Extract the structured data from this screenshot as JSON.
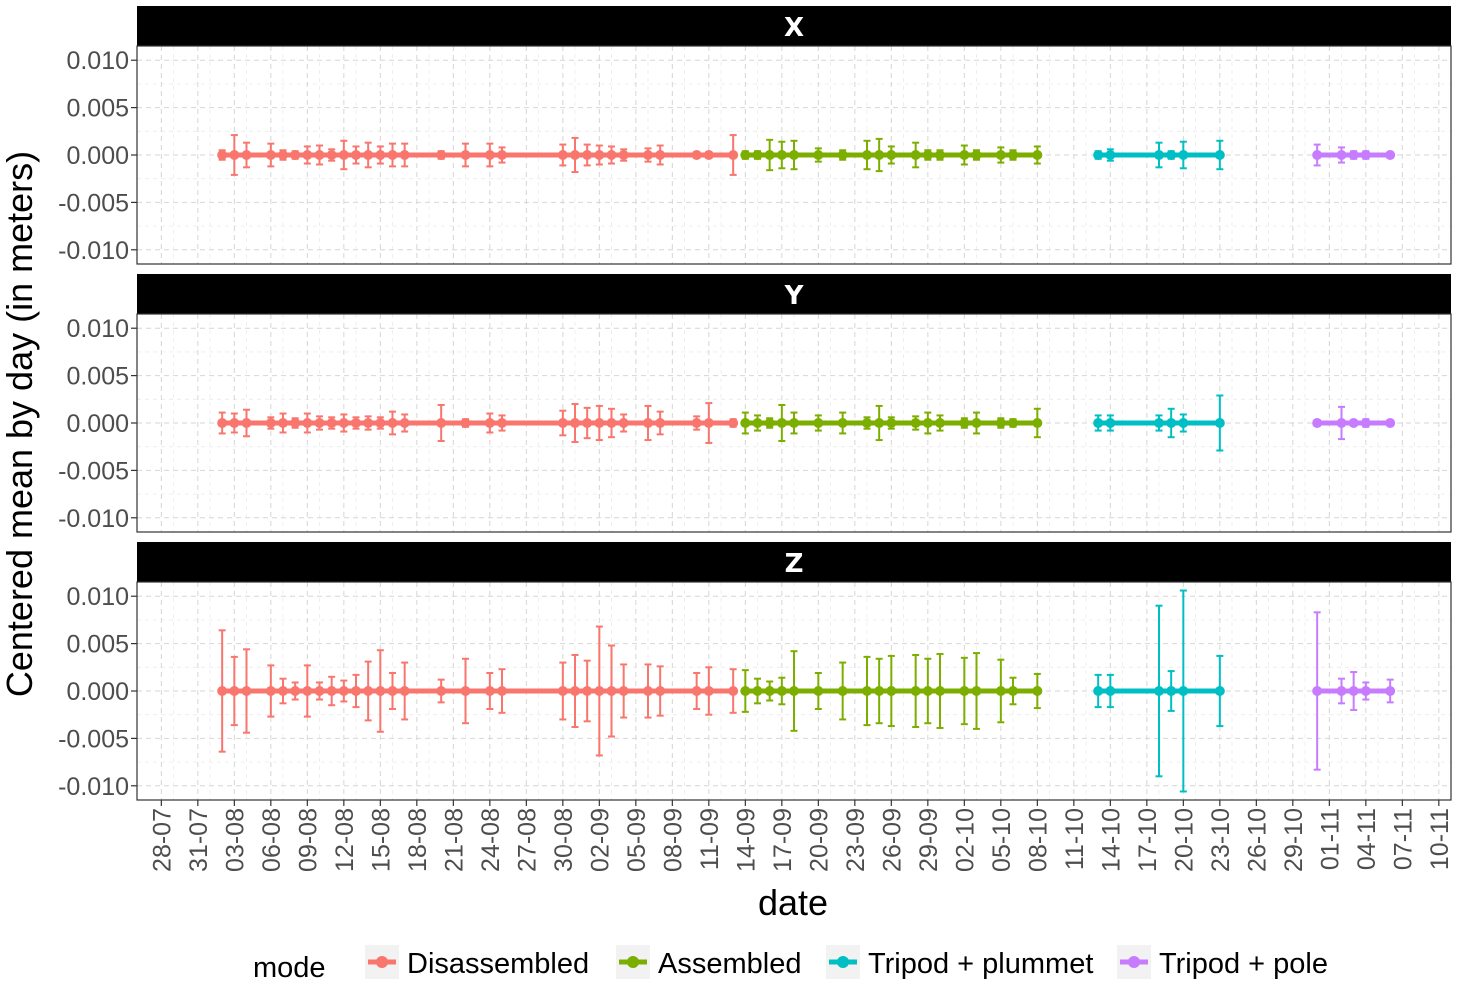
{
  "chart_data": {
    "type": "line",
    "title": "",
    "xlabel": "date",
    "ylabel": "Centered mean by day (in meters)",
    "facets": [
      "X",
      "Y",
      "Z"
    ],
    "ylim": [
      -0.0115,
      0.0115
    ],
    "y_ticks": [
      -0.01,
      -0.005,
      0,
      0.005,
      0.01
    ],
    "y_tick_labels": [
      "-0.010",
      "-0.005",
      "0.000",
      "0.005",
      "0.010"
    ],
    "x_range": [
      "2022-07-26",
      "2022-11-11"
    ],
    "x_ticks": [
      "2022-07-28",
      "2022-07-31",
      "2022-08-03",
      "2022-08-06",
      "2022-08-09",
      "2022-08-12",
      "2022-08-15",
      "2022-08-18",
      "2022-08-21",
      "2022-08-24",
      "2022-08-27",
      "2022-08-30",
      "2022-09-02",
      "2022-09-05",
      "2022-09-08",
      "2022-09-11",
      "2022-09-14",
      "2022-09-17",
      "2022-09-20",
      "2022-09-23",
      "2022-09-26",
      "2022-09-29",
      "2022-10-02",
      "2022-10-05",
      "2022-10-08",
      "2022-10-11",
      "2022-10-14",
      "2022-10-17",
      "2022-10-20",
      "2022-10-23",
      "2022-10-26",
      "2022-10-29",
      "2022-11-01",
      "2022-11-04",
      "2022-11-07",
      "2022-11-10"
    ],
    "x_tick_labels": [
      "28-07",
      "31-07",
      "03-08",
      "06-08",
      "09-08",
      "12-08",
      "15-08",
      "18-08",
      "21-08",
      "24-08",
      "27-08",
      "30-08",
      "02-09",
      "05-09",
      "08-09",
      "11-09",
      "14-09",
      "17-09",
      "20-09",
      "23-09",
      "26-09",
      "29-09",
      "02-10",
      "05-10",
      "08-10",
      "11-10",
      "14-10",
      "17-10",
      "20-10",
      "23-10",
      "26-10",
      "29-10",
      "01-11",
      "04-11",
      "07-11",
      "10-11"
    ],
    "grid": true,
    "legend": {
      "title": "mode",
      "position": "bottom"
    },
    "series": [
      {
        "name": "Disassembled",
        "color": "#F8766D",
        "dates": [
          "2022-08-02",
          "2022-08-03",
          "2022-08-04",
          "2022-08-06",
          "2022-08-07",
          "2022-08-08",
          "2022-08-09",
          "2022-08-10",
          "2022-08-11",
          "2022-08-12",
          "2022-08-13",
          "2022-08-14",
          "2022-08-15",
          "2022-08-16",
          "2022-08-17",
          "2022-08-20",
          "2022-08-22",
          "2022-08-24",
          "2022-08-25",
          "2022-08-30",
          "2022-08-31",
          "2022-09-01",
          "2022-09-02",
          "2022-09-03",
          "2022-09-04",
          "2022-09-06",
          "2022-09-07",
          "2022-09-10",
          "2022-09-11",
          "2022-09-13"
        ],
        "values": [
          0,
          0,
          0,
          0,
          0,
          0,
          0,
          0,
          0,
          0,
          0,
          0,
          0,
          0,
          0,
          0,
          0,
          0,
          0,
          0,
          0,
          0,
          0,
          0,
          0,
          0,
          0,
          0,
          0,
          0
        ],
        "err_X": [
          0.0005,
          0.0021,
          0.0013,
          0.0012,
          0.0005,
          0.0004,
          0.0009,
          0.001,
          0.0006,
          0.0015,
          0.0009,
          0.0013,
          0.0009,
          0.0012,
          0.0012,
          0.0004,
          0.0012,
          0.0012,
          0.0008,
          0.0011,
          0.0018,
          0.0011,
          0.001,
          0.0009,
          0.0006,
          0.0007,
          0.001,
          0.0003,
          0.0003,
          0.0021
        ],
        "err_Y": [
          0.0011,
          0.001,
          0.0014,
          0.0006,
          0.001,
          0.0005,
          0.001,
          0.0007,
          0.0006,
          0.0009,
          0.0006,
          0.0007,
          0.0006,
          0.0012,
          0.0009,
          0.0019,
          0.0004,
          0.001,
          0.0008,
          0.0013,
          0.002,
          0.0016,
          0.0018,
          0.0015,
          0.0009,
          0.0018,
          0.0012,
          0.0007,
          0.0021,
          0.0004
        ],
        "err_Z": [
          0.0064,
          0.0036,
          0.0044,
          0.0027,
          0.0013,
          0.0009,
          0.0027,
          0.0009,
          0.0015,
          0.0011,
          0.0017,
          0.0031,
          0.0043,
          0.0019,
          0.003,
          0.0012,
          0.0034,
          0.0019,
          0.0023,
          0.003,
          0.0038,
          0.0032,
          0.0068,
          0.0048,
          0.0028,
          0.0028,
          0.0026,
          0.0019,
          0.0025,
          0.0023
        ]
      },
      {
        "name": "Assembled",
        "color": "#7CAE00",
        "dates": [
          "2022-09-14",
          "2022-09-15",
          "2022-09-16",
          "2022-09-17",
          "2022-09-18",
          "2022-09-20",
          "2022-09-22",
          "2022-09-24",
          "2022-09-25",
          "2022-09-26",
          "2022-09-28",
          "2022-09-29",
          "2022-09-30",
          "2022-10-02",
          "2022-10-03",
          "2022-10-05",
          "2022-10-06",
          "2022-10-08"
        ],
        "values": [
          0,
          0,
          0,
          0,
          0,
          0,
          0,
          0,
          0,
          0,
          0,
          0,
          0,
          0,
          0,
          0,
          0,
          0
        ],
        "err_X": [
          0.0004,
          0.0004,
          0.0016,
          0.0014,
          0.0015,
          0.0007,
          0.0005,
          0.0015,
          0.0017,
          0.0009,
          0.0013,
          0.0005,
          0.0005,
          0.001,
          0.0005,
          0.0008,
          0.0005,
          0.0009
        ],
        "err_Y": [
          0.0011,
          0.0008,
          0.0005,
          0.0019,
          0.0011,
          0.0008,
          0.0011,
          0.0006,
          0.0018,
          0.0006,
          0.0007,
          0.0011,
          0.0008,
          0.0005,
          0.0011,
          0.0005,
          0.0004,
          0.0015
        ],
        "err_Z": [
          0.0022,
          0.0013,
          0.001,
          0.0014,
          0.0042,
          0.0019,
          0.003,
          0.0036,
          0.0034,
          0.0037,
          0.0038,
          0.0034,
          0.0039,
          0.0035,
          0.004,
          0.0033,
          0.0014,
          0.0018
        ]
      },
      {
        "name": "Tripod + plummet",
        "color": "#00BFC4",
        "dates": [
          "2022-10-13",
          "2022-10-14",
          "2022-10-18",
          "2022-10-19",
          "2022-10-20",
          "2022-10-23"
        ],
        "values": [
          0,
          0,
          0,
          0,
          0,
          0
        ],
        "err_X": [
          0.0004,
          0.0006,
          0.0013,
          0.0004,
          0.0014,
          0.0015
        ],
        "err_Y": [
          0.0008,
          0.0008,
          0.0008,
          0.0015,
          0.0009,
          0.0029
        ],
        "err_Z": [
          0.0017,
          0.0017,
          0.009,
          0.0021,
          0.0106,
          0.0037
        ]
      },
      {
        "name": "Tripod + pole",
        "color": "#C77CFF",
        "dates": [
          "2022-10-31",
          "2022-11-02",
          "2022-11-03",
          "2022-11-04",
          "2022-11-06"
        ],
        "values": [
          0,
          0,
          0,
          0,
          0
        ],
        "err_X": [
          0.0011,
          0.0008,
          0.0004,
          0.0004,
          0.0003
        ],
        "err_Y": [
          0.0003,
          0.0017,
          0.0003,
          0.0004,
          0.0003
        ],
        "err_Z": [
          0.0083,
          0.0013,
          0.002,
          0.0009,
          0.0012
        ]
      }
    ]
  }
}
